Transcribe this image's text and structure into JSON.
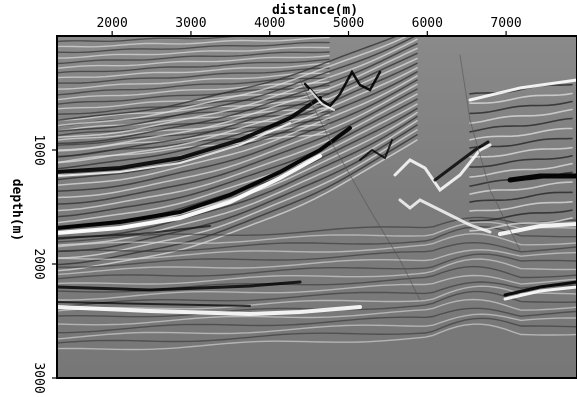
{
  "figure": {
    "x_axis": {
      "label": "distance(m)",
      "ticks": [
        2000,
        3000,
        4000,
        5000,
        6000,
        7000
      ],
      "range": [
        1300,
        7900
      ],
      "position": "top"
    },
    "y_axis": {
      "label": "depth(m)",
      "ticks": [
        1000,
        2000,
        3000
      ],
      "range": [
        0,
        3000
      ],
      "reversed": true
    },
    "image": {
      "kind": "seismic-migration-section",
      "colormap": "grayscale",
      "background": "#7f7f7f"
    }
  }
}
